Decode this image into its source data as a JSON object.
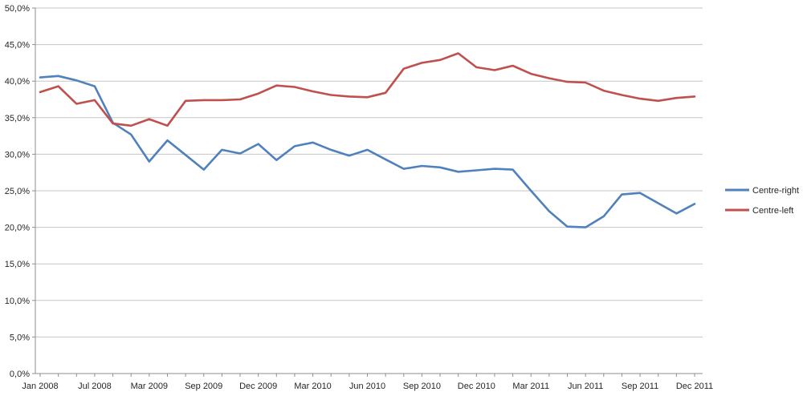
{
  "chart_data": {
    "type": "line",
    "title": "",
    "grid": "horizontal",
    "legend_position": "right",
    "ylim": [
      0,
      50
    ],
    "y_tick_step": 5,
    "y_tick_labels": [
      "0,0%",
      "5,0%",
      "10,0%",
      "15,0%",
      "20,0%",
      "25,0%",
      "30,0%",
      "35,0%",
      "40,0%",
      "45,0%",
      "50,0%"
    ],
    "x_tick_labels": [
      "Jan 2008",
      "Jul 2008",
      "Mar 2009",
      "Sep 2009",
      "Dec 2009",
      "Mar 2010",
      "Jun 2010",
      "Sep 2010",
      "Dec 2010",
      "Mar 2011",
      "Jun 2011",
      "Sep 2011",
      "Dec 2011"
    ],
    "points_per_label": 3,
    "n_points": 37,
    "series": [
      {
        "name": "Centre-right",
        "color": "#4F81BD",
        "values": [
          40.5,
          40.7,
          40.1,
          39.3,
          34.3,
          32.7,
          29.0,
          31.9,
          29.9,
          27.9,
          30.6,
          30.1,
          31.4,
          29.2,
          31.1,
          31.6,
          30.6,
          29.8,
          30.6,
          29.3,
          28.0,
          28.4,
          28.2,
          27.6,
          27.8,
          28.0,
          27.9,
          25.0,
          22.2,
          20.1,
          20.0,
          21.5,
          24.5,
          24.7,
          23.3,
          21.9,
          23.2
        ]
      },
      {
        "name": "Centre-left",
        "color": "#C0504D",
        "values": [
          38.5,
          39.3,
          36.9,
          37.4,
          34.2,
          33.9,
          34.8,
          33.9,
          37.3,
          37.4,
          37.4,
          37.5,
          38.3,
          39.4,
          39.2,
          38.6,
          38.1,
          37.9,
          37.8,
          38.4,
          41.7,
          42.5,
          42.9,
          43.8,
          41.9,
          41.5,
          42.1,
          41.0,
          40.4,
          39.9,
          39.8,
          38.7,
          38.1,
          37.6,
          37.3,
          37.7,
          37.9
        ]
      }
    ],
    "colors": {
      "gridline": "#C6C6C6",
      "axis": "#8E8E8E",
      "tick": "#8E8E8E",
      "text": "#262626",
      "background": "#FFFFFF"
    }
  }
}
